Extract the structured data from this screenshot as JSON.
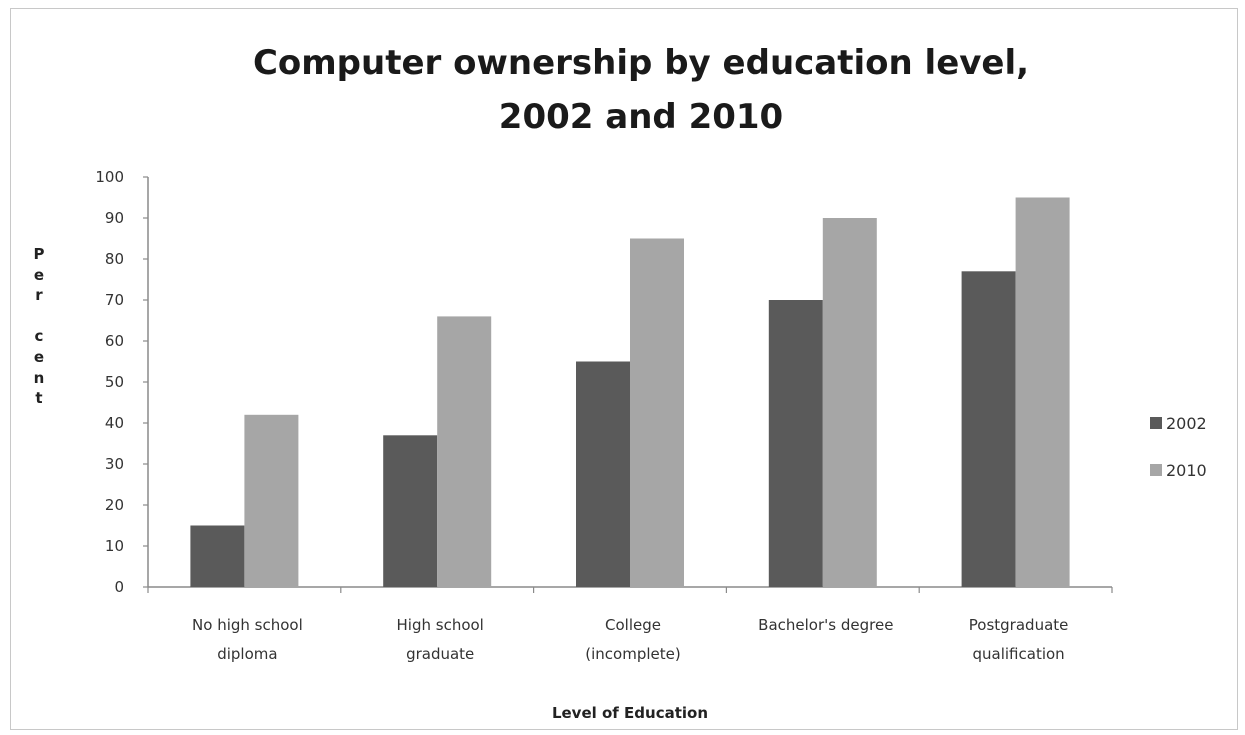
{
  "chart_data": {
    "type": "bar",
    "title_lines": [
      "Computer ownership by education level,",
      "2002 and 2010"
    ],
    "xlabel": "Level of Education",
    "ylabel_letters": [
      "P",
      "e",
      "r",
      "",
      "c",
      "e",
      "n",
      "t"
    ],
    "categories": [
      [
        "No high school",
        "diploma"
      ],
      [
        "High school",
        "graduate"
      ],
      [
        "College",
        "(incomplete)"
      ],
      [
        "Bachelor's degree"
      ],
      [
        "Postgraduate",
        "qualification"
      ]
    ],
    "series": [
      {
        "name": "2002",
        "color": "#5a5a5a",
        "values": [
          15,
          37,
          55,
          70,
          77
        ]
      },
      {
        "name": "2010",
        "color": "#a6a6a6",
        "values": [
          42,
          66,
          85,
          90,
          95
        ]
      }
    ],
    "ylim": [
      0,
      100
    ],
    "yticks": [
      "0",
      "10",
      "20",
      "30",
      "40",
      "50",
      "60",
      "70",
      "80",
      "90",
      "100"
    ],
    "grid": false,
    "legend_position": "right"
  }
}
